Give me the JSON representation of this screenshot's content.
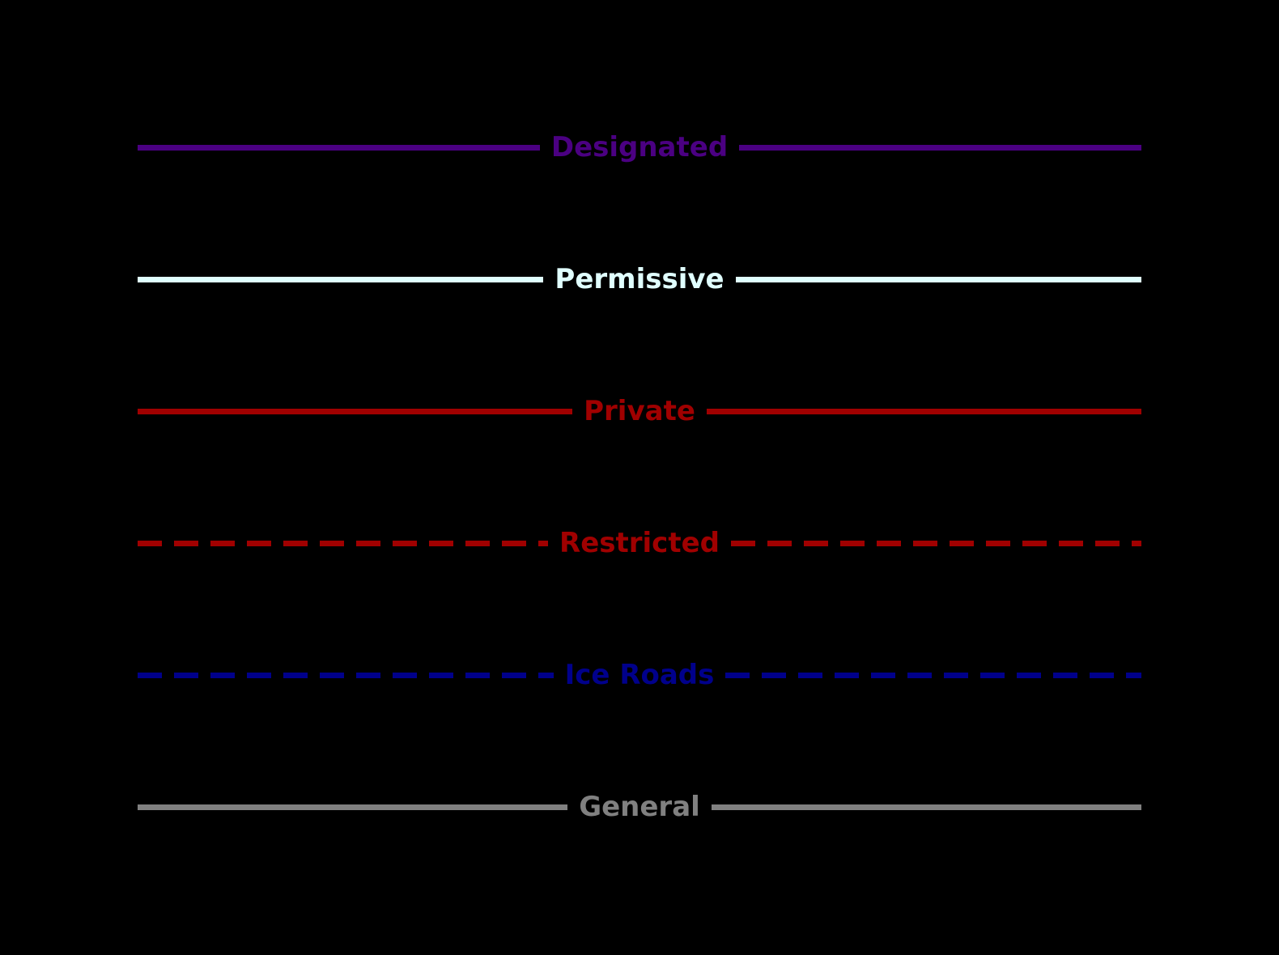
{
  "background_color": "#000000",
  "chart_data": {
    "type": "line",
    "title": "",
    "description": "Road access type legend on black background",
    "legend_position": "full-figure-stacked",
    "legend_entries": [
      {
        "label": "Designated",
        "color": "#4B0082",
        "linestyle": "solid",
        "linewidth": 7
      },
      {
        "label": "Permissive",
        "color": "#E0FFFF",
        "linestyle": "solid",
        "linewidth": 7
      },
      {
        "label": "Private",
        "color": "#A00000",
        "linestyle": "solid",
        "linewidth": 7
      },
      {
        "label": "Restricted",
        "color": "#A00000",
        "linestyle": "dashed",
        "linewidth": 7,
        "dash_pattern": [
          30,
          15
        ]
      },
      {
        "label": "Ice Roads",
        "color": "#00008B",
        "linestyle": "dashed",
        "linewidth": 7,
        "dash_pattern": [
          30,
          15
        ]
      },
      {
        "label": "General",
        "color": "#808080",
        "linestyle": "solid",
        "linewidth": 7
      }
    ]
  }
}
